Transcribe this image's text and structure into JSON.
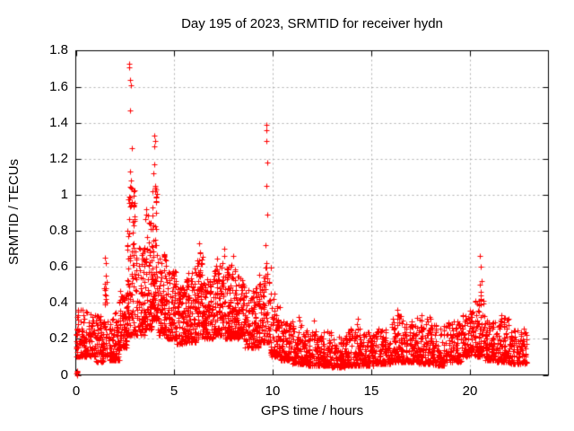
{
  "chart_data": {
    "type": "scatter",
    "title": "Day 195 of 2023, SRMTID for receiver hydn",
    "xlabel": "GPS time / hours",
    "ylabel": "SRMTID / TECUs",
    "xlim": [
      0,
      24
    ],
    "ylim": [
      0,
      1.8
    ],
    "xticks": [
      0,
      5,
      10,
      15,
      20
    ],
    "xtick_labels": [
      "0",
      "5",
      "10",
      "15",
      "20"
    ],
    "yticks": [
      0,
      0.2,
      0.4,
      0.6,
      0.8,
      1.0,
      1.2,
      1.4,
      1.6,
      1.8
    ],
    "ytick_labels": [
      "0",
      "0.2",
      "0.4",
      "0.6",
      "0.8",
      "1",
      "1.2",
      "1.4",
      "1.6",
      "1.8"
    ],
    "grid": {
      "visible": true,
      "style": "dashed",
      "color": "#b0b0b0"
    },
    "legend": null,
    "marker": {
      "shape": "plus",
      "color": "#ff0000",
      "size": 7
    },
    "border_color": "#000000",
    "background": "#ffffff",
    "series_name": "SRMTID",
    "points_spec": {
      "seed": 195,
      "skew": 1.7,
      "envelope": [
        {
          "t0": 0.0,
          "t1": 0.35,
          "n": 50,
          "lo": 0.1,
          "hi": 0.38
        },
        {
          "t0": 0.35,
          "t1": 1.0,
          "n": 90,
          "lo": 0.1,
          "hi": 0.36
        },
        {
          "t0": 1.0,
          "t1": 1.45,
          "n": 70,
          "lo": 0.07,
          "hi": 0.33
        },
        {
          "t0": 1.45,
          "t1": 1.6,
          "n": 25,
          "lo": 0.1,
          "hi": 0.52
        },
        {
          "t0": 1.6,
          "t1": 2.2,
          "n": 90,
          "lo": 0.08,
          "hi": 0.35
        },
        {
          "t0": 2.2,
          "t1": 2.6,
          "n": 80,
          "lo": 0.15,
          "hi": 0.47
        },
        {
          "t0": 2.6,
          "t1": 3.0,
          "n": 100,
          "lo": 0.22,
          "hi": 1.05
        },
        {
          "t0": 3.0,
          "t1": 3.5,
          "n": 90,
          "lo": 0.22,
          "hi": 0.72
        },
        {
          "t0": 3.5,
          "t1": 3.85,
          "n": 80,
          "lo": 0.25,
          "hi": 0.95
        },
        {
          "t0": 3.85,
          "t1": 4.15,
          "n": 80,
          "lo": 0.3,
          "hi": 1.05
        },
        {
          "t0": 4.15,
          "t1": 4.6,
          "n": 90,
          "lo": 0.22,
          "hi": 0.68
        },
        {
          "t0": 4.6,
          "t1": 5.1,
          "n": 90,
          "lo": 0.2,
          "hi": 0.58
        },
        {
          "t0": 5.1,
          "t1": 5.6,
          "n": 90,
          "lo": 0.17,
          "hi": 0.52
        },
        {
          "t0": 5.6,
          "t1": 6.1,
          "n": 95,
          "lo": 0.18,
          "hi": 0.6
        },
        {
          "t0": 6.1,
          "t1": 6.5,
          "n": 80,
          "lo": 0.2,
          "hi": 0.68
        },
        {
          "t0": 6.5,
          "t1": 7.0,
          "n": 95,
          "lo": 0.2,
          "hi": 0.55
        },
        {
          "t0": 7.0,
          "t1": 7.6,
          "n": 110,
          "lo": 0.22,
          "hi": 0.65
        },
        {
          "t0": 7.6,
          "t1": 8.1,
          "n": 100,
          "lo": 0.2,
          "hi": 0.62
        },
        {
          "t0": 8.1,
          "t1": 8.6,
          "n": 100,
          "lo": 0.2,
          "hi": 0.55
        },
        {
          "t0": 8.6,
          "t1": 9.3,
          "n": 110,
          "lo": 0.15,
          "hi": 0.48
        },
        {
          "t0": 9.3,
          "t1": 9.9,
          "n": 100,
          "lo": 0.18,
          "hi": 0.6
        },
        {
          "t0": 9.9,
          "t1": 10.4,
          "n": 80,
          "lo": 0.1,
          "hi": 0.38
        },
        {
          "t0": 10.4,
          "t1": 11.0,
          "n": 90,
          "lo": 0.08,
          "hi": 0.3
        },
        {
          "t0": 11.0,
          "t1": 11.6,
          "n": 90,
          "lo": 0.06,
          "hi": 0.28
        },
        {
          "t0": 11.6,
          "t1": 12.3,
          "n": 100,
          "lo": 0.05,
          "hi": 0.25
        },
        {
          "t0": 12.3,
          "t1": 13.0,
          "n": 100,
          "lo": 0.05,
          "hi": 0.24
        },
        {
          "t0": 13.0,
          "t1": 13.7,
          "n": 100,
          "lo": 0.04,
          "hi": 0.22
        },
        {
          "t0": 13.7,
          "t1": 14.5,
          "n": 110,
          "lo": 0.05,
          "hi": 0.26
        },
        {
          "t0": 14.5,
          "t1": 15.2,
          "n": 100,
          "lo": 0.05,
          "hi": 0.24
        },
        {
          "t0": 15.2,
          "t1": 16.0,
          "n": 110,
          "lo": 0.06,
          "hi": 0.26
        },
        {
          "t0": 16.0,
          "t1": 16.6,
          "n": 90,
          "lo": 0.07,
          "hi": 0.33
        },
        {
          "t0": 16.6,
          "t1": 17.3,
          "n": 95,
          "lo": 0.07,
          "hi": 0.3
        },
        {
          "t0": 17.3,
          "t1": 18.0,
          "n": 95,
          "lo": 0.06,
          "hi": 0.32
        },
        {
          "t0": 18.0,
          "t1": 18.8,
          "n": 100,
          "lo": 0.05,
          "hi": 0.28
        },
        {
          "t0": 18.8,
          "t1": 19.6,
          "n": 100,
          "lo": 0.07,
          "hi": 0.3
        },
        {
          "t0": 19.6,
          "t1": 20.2,
          "n": 85,
          "lo": 0.1,
          "hi": 0.36
        },
        {
          "t0": 20.2,
          "t1": 20.75,
          "n": 85,
          "lo": 0.1,
          "hi": 0.42
        },
        {
          "t0": 20.75,
          "t1": 21.3,
          "n": 85,
          "lo": 0.08,
          "hi": 0.3
        },
        {
          "t0": 21.3,
          "t1": 22.0,
          "n": 95,
          "lo": 0.07,
          "hi": 0.32
        },
        {
          "t0": 22.0,
          "t1": 22.9,
          "n": 110,
          "lo": 0.06,
          "hi": 0.26
        }
      ],
      "columns": [
        {
          "t": 0.05,
          "values": [
            0.0,
            0.005,
            0.01,
            0.015,
            0.02
          ]
        },
        {
          "t": 1.52,
          "values": [
            0.65,
            0.62,
            0.55,
            0.48,
            0.44,
            0.4
          ]
        },
        {
          "t": 2.72,
          "values": [
            1.73,
            1.71
          ]
        },
        {
          "t": 2.78,
          "values": [
            1.64,
            1.61
          ]
        },
        {
          "t": 2.8,
          "values": [
            1.47
          ]
        },
        {
          "t": 2.82,
          "values": [
            1.26
          ]
        },
        {
          "t": 2.76,
          "values": [
            1.13,
            1.08
          ]
        },
        {
          "t": 4.02,
          "values": [
            1.33,
            1.3
          ]
        },
        {
          "t": 3.98,
          "values": [
            1.27,
            1.17,
            1.12
          ]
        },
        {
          "t": 4.05,
          "values": [
            1.05,
            1.02,
            0.99,
            0.96
          ]
        },
        {
          "t": 6.28,
          "values": [
            0.73,
            0.68
          ]
        },
        {
          "t": 7.52,
          "values": [
            0.7,
            0.66
          ]
        },
        {
          "t": 8.02,
          "values": [
            0.66
          ]
        },
        {
          "t": 9.68,
          "values": [
            1.39,
            1.36,
            1.3,
            1.18,
            1.05,
            0.89,
            0.72,
            0.62,
            0.55
          ]
        },
        {
          "t": 10.05,
          "values": [
            0.45,
            0.42
          ]
        },
        {
          "t": 11.32,
          "values": [
            0.32,
            0.3
          ]
        },
        {
          "t": 12.1,
          "values": [
            0.3
          ]
        },
        {
          "t": 14.3,
          "values": [
            0.31,
            0.28
          ]
        },
        {
          "t": 16.3,
          "values": [
            0.36,
            0.33
          ]
        },
        {
          "t": 17.6,
          "values": [
            0.33
          ]
        },
        {
          "t": 20.52,
          "values": [
            0.66,
            0.6
          ]
        },
        {
          "t": 20.56,
          "values": [
            0.52,
            0.5,
            0.46,
            0.44,
            0.42
          ]
        },
        {
          "t": 21.6,
          "values": [
            0.33,
            0.3
          ]
        }
      ]
    }
  }
}
